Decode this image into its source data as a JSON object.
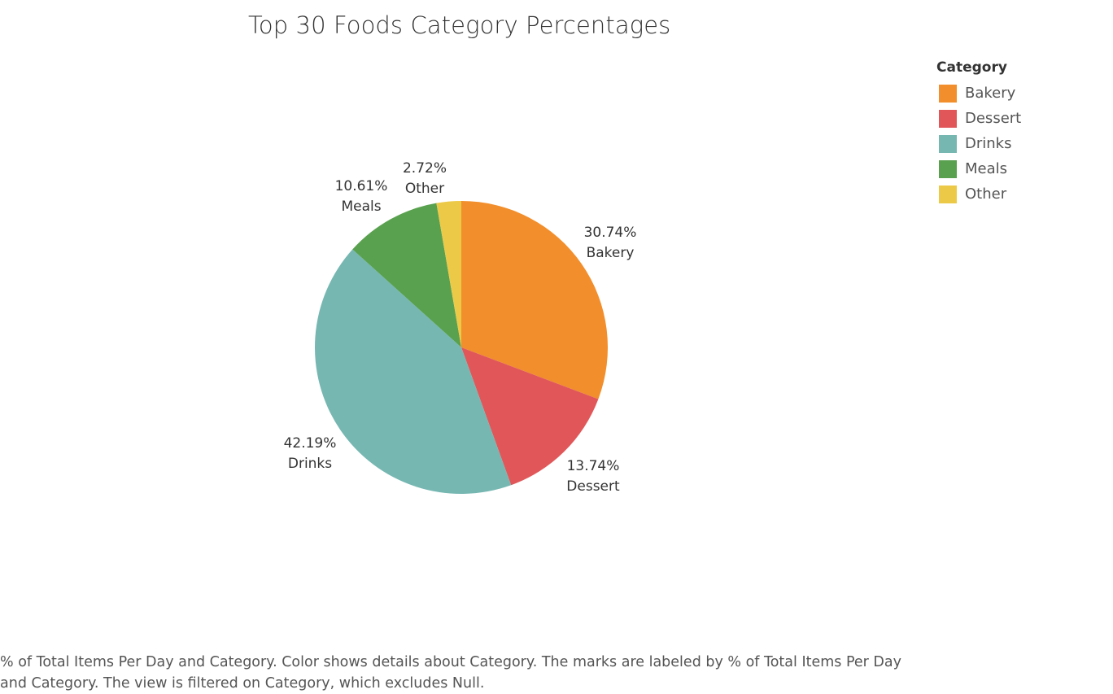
{
  "chart_data": {
    "type": "pie",
    "title": "Top 30 Foods Category Percentages",
    "legend_title": "Category",
    "legend_position": "top-right",
    "slices": [
      {
        "category": "Bakery",
        "value": 30.74,
        "label": "30.74%",
        "color": "#F28E2B"
      },
      {
        "category": "Dessert",
        "value": 13.74,
        "label": "13.74%",
        "color": "#E15759"
      },
      {
        "category": "Drinks",
        "value": 42.19,
        "label": "42.19%",
        "color": "#76B7B2"
      },
      {
        "category": "Meals",
        "value": 10.61,
        "label": "10.61%",
        "color": "#59A14F"
      },
      {
        "category": "Other",
        "value": 2.72,
        "label": "2.72%",
        "color": "#EDC948"
      }
    ]
  },
  "caption": "% of Total Items Per Day and Category.  Color shows details about Category.  The marks are labeled by % of Total Items Per Day and Category. The view is filtered on Category, which excludes Null."
}
